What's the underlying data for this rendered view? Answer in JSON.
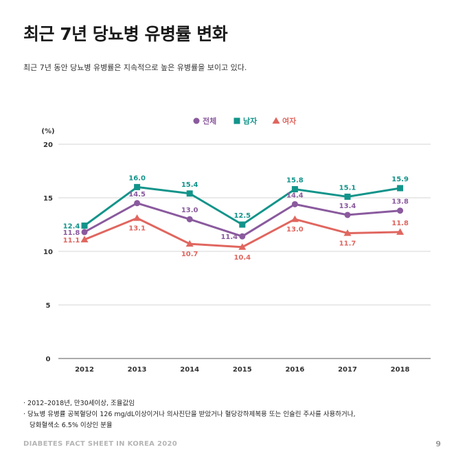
{
  "title": "최근 7년 당뇨병 유병률 변화",
  "subtitle": "최근 7년 동안 당뇨병 유병률은 지속적으로 높은 유병률을 보이고 있다.",
  "notes": [
    "· 2012–2018년, 만30세이상, 조율값임",
    "· 당뇨병 유병률 공복혈당이 126 mg/dL이상이거나 의사진단을 받았거나 혈당강하제복용 또는 인슐린 주사를 사용하거나,",
    "당화혈색소 6.5% 이상인 분율"
  ],
  "footer": "DIABETES FACT SHEET IN KOREA 2020",
  "page_number": "9",
  "chart_data": {
    "type": "line",
    "unit_label": "(%)",
    "categories": [
      "2012",
      "2013",
      "2014",
      "2015",
      "2016",
      "2017",
      "2018"
    ],
    "ylim": [
      0,
      20
    ],
    "yticks": [
      "0",
      "5",
      "10",
      "15",
      "20"
    ],
    "ytick_values": [
      0,
      5,
      10,
      15,
      20
    ],
    "grid": true,
    "legend_position": "top-center",
    "series": [
      {
        "name": "전체",
        "color": "#8a5a9e",
        "marker": "circle",
        "values": [
          11.8,
          14.5,
          13.0,
          11.4,
          14.4,
          13.4,
          13.8
        ],
        "labels": [
          "11.8",
          "14.5",
          "13.0",
          "11.4",
          "14.4",
          "13.4",
          "13.8"
        ]
      },
      {
        "name": "남자",
        "color": "#12948a",
        "marker": "square",
        "values": [
          12.4,
          16.0,
          15.4,
          12.5,
          15.8,
          15.1,
          15.9
        ],
        "labels": [
          "12.4",
          "16.0",
          "15.4",
          "12.5",
          "15.8",
          "15.1",
          "15.9"
        ]
      },
      {
        "name": "여자",
        "color": "#e0665f",
        "marker": "triangle",
        "values": [
          11.1,
          13.1,
          10.7,
          10.4,
          13.0,
          11.7,
          11.8
        ],
        "labels": [
          "11.1",
          "13.1",
          "10.7",
          "10.4",
          "13.0",
          "11.7",
          "11.8"
        ]
      }
    ]
  }
}
